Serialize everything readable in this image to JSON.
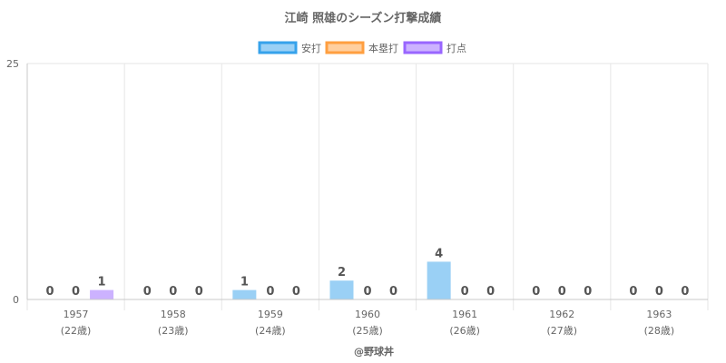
{
  "chart_data": {
    "type": "bar",
    "title": "江崎 照雄のシーズン打撃成績",
    "categories": [
      "1957",
      "1958",
      "1959",
      "1960",
      "1961",
      "1962",
      "1963"
    ],
    "category_sublabels": [
      "(22歳)",
      "(23歳)",
      "(24歳)",
      "(25歳)",
      "(26歳)",
      "(27歳)",
      "(28歳)"
    ],
    "series": [
      {
        "name": "安打",
        "values": [
          0,
          0,
          1,
          2,
          4,
          0,
          0
        ],
        "color": "#36a2eb"
      },
      {
        "name": "本塁打",
        "values": [
          0,
          0,
          0,
          0,
          0,
          0,
          0
        ],
        "color": "#ff9f40"
      },
      {
        "name": "打点",
        "values": [
          1,
          0,
          0,
          0,
          0,
          0,
          0
        ],
        "color": "#9966ff"
      }
    ],
    "ylim": [
      0,
      25
    ],
    "yticks": [
      "0",
      "25"
    ],
    "grid": true,
    "legend": "top"
  },
  "credit": "@野球丼"
}
